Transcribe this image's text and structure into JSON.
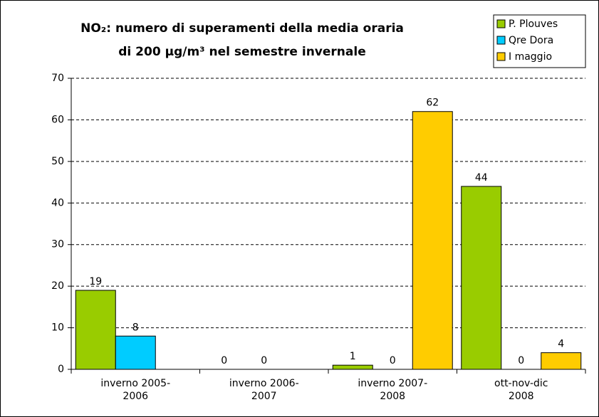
{
  "chart_data": {
    "type": "bar",
    "title": [
      "NO₂: numero di superamenti della media oraria",
      "di 200 µg/m³ nel semestre invernale"
    ],
    "categories": [
      "inverno 2005-2006",
      "inverno 2006-2007",
      "inverno 2007-2008",
      "ott-nov-dic 2008"
    ],
    "series": [
      {
        "name": "P. Plouves",
        "color": "#99cc00",
        "values": [
          19,
          0,
          1,
          44
        ]
      },
      {
        "name": "Qre Dora",
        "color": "#00ccff",
        "values": [
          8,
          0,
          0,
          0
        ]
      },
      {
        "name": "I maggio",
        "color": "#ffcc00",
        "values": [
          null,
          null,
          62,
          4
        ]
      }
    ],
    "ylim": [
      0,
      70
    ],
    "yticks": [
      0,
      10,
      20,
      30,
      40,
      50,
      60,
      70
    ],
    "grid": true,
    "legend": "top-right"
  }
}
